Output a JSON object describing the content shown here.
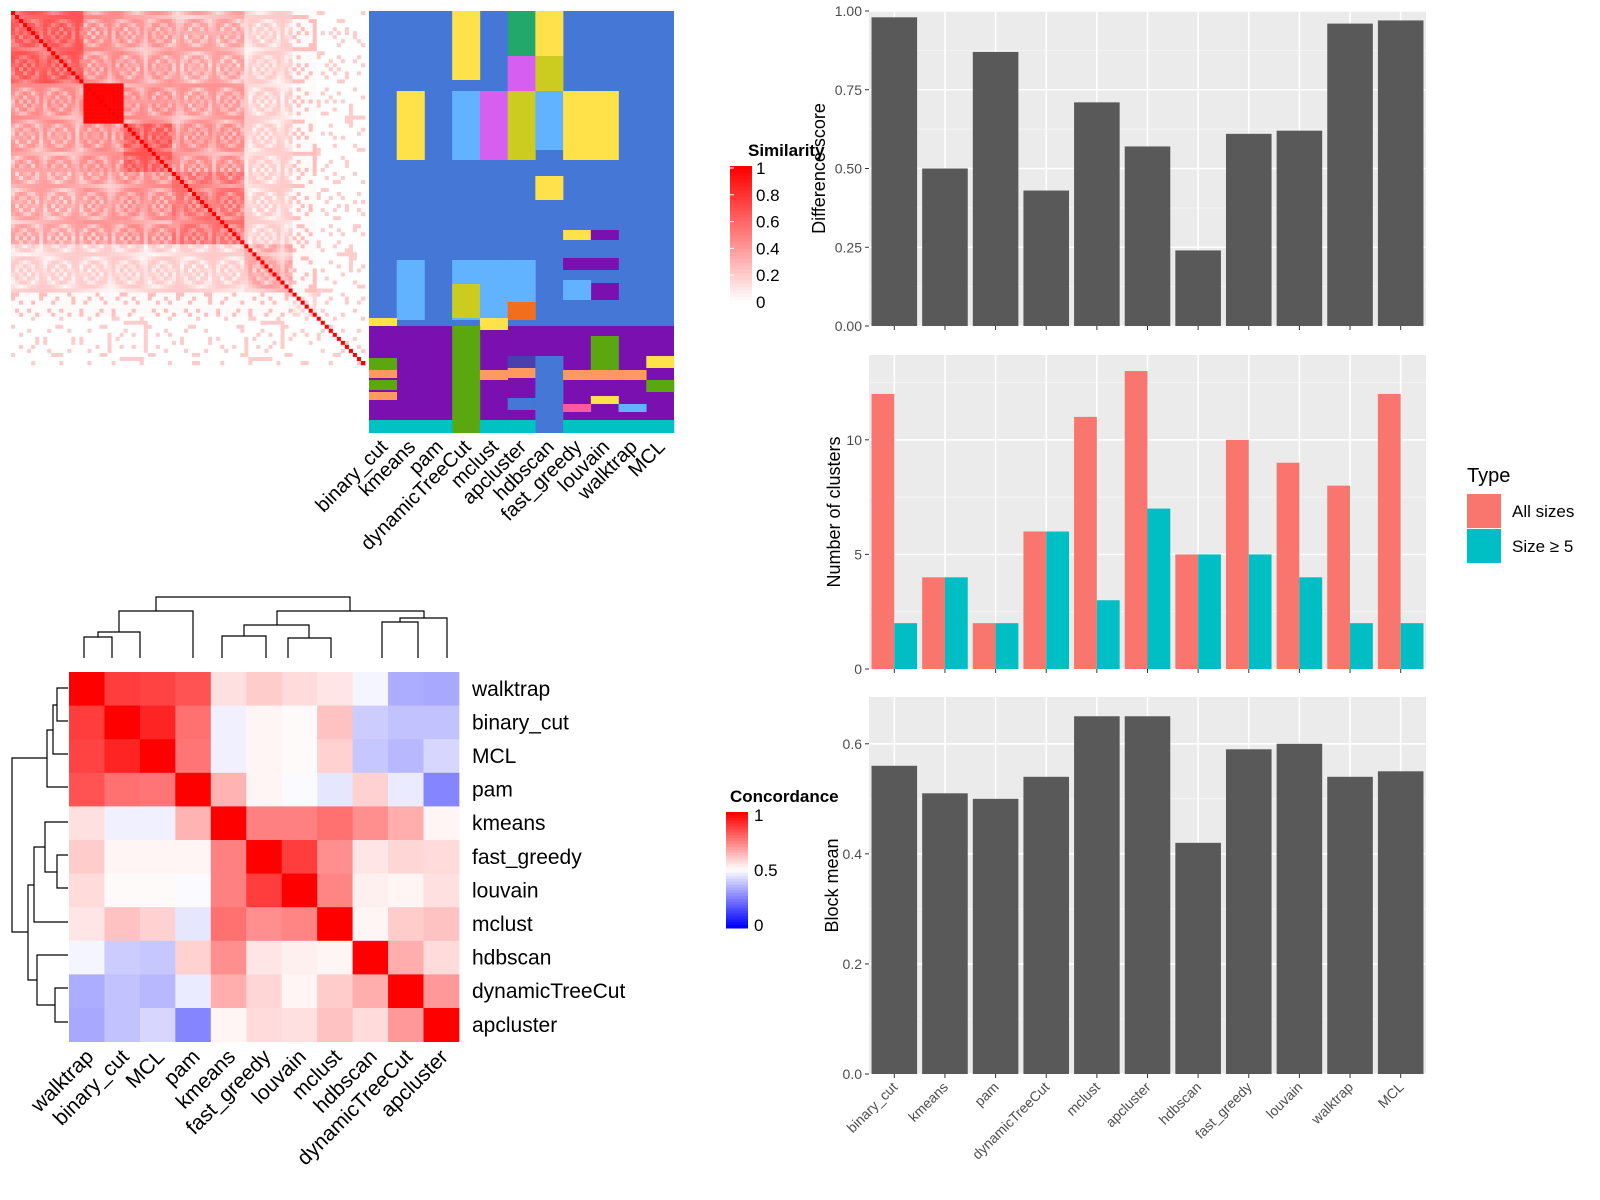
{
  "methods_top": [
    "binary_cut",
    "kmeans",
    "pam",
    "dynamicTreeCut",
    "mclust",
    "apcluster",
    "hdbscan",
    "fast_greedy",
    "louvain",
    "walktrap",
    "MCL"
  ],
  "similarity_legend": {
    "title": "Similarity",
    "ticks": [
      "1",
      "0.8",
      "0.6",
      "0.4",
      "0.2",
      "0"
    ]
  },
  "concordance_legend": {
    "title": "Concordance",
    "ticks": [
      "1",
      "0.5",
      "0"
    ]
  },
  "heat_rows": [
    "walktrap",
    "binary_cut",
    "MCL",
    "pam",
    "kmeans",
    "fast_greedy",
    "louvain",
    "mclust",
    "hdbscan",
    "dynamicTreeCut",
    "apcluster"
  ],
  "heat_cols": [
    "walktrap",
    "binary_cut",
    "MCL",
    "pam",
    "kmeans",
    "fast_greedy",
    "louvain",
    "mclust",
    "hdbscan",
    "dynamicTreeCut",
    "apcluster"
  ],
  "concordance_matrix": [
    [
      1.0,
      0.88,
      0.87,
      0.84,
      0.56,
      0.6,
      0.57,
      0.55,
      0.48,
      0.34,
      0.33
    ],
    [
      0.88,
      1.0,
      0.93,
      0.78,
      0.47,
      0.52,
      0.51,
      0.62,
      0.4,
      0.38,
      0.38
    ],
    [
      0.87,
      0.93,
      1.0,
      0.77,
      0.47,
      0.52,
      0.51,
      0.59,
      0.39,
      0.36,
      0.42
    ],
    [
      0.84,
      0.78,
      0.77,
      1.0,
      0.65,
      0.52,
      0.49,
      0.45,
      0.59,
      0.46,
      0.26
    ],
    [
      0.56,
      0.47,
      0.47,
      0.65,
      1.0,
      0.75,
      0.75,
      0.78,
      0.72,
      0.66,
      0.52
    ],
    [
      0.6,
      0.52,
      0.52,
      0.52,
      0.75,
      1.0,
      0.88,
      0.72,
      0.55,
      0.58,
      0.57
    ],
    [
      0.57,
      0.51,
      0.51,
      0.49,
      0.75,
      0.88,
      1.0,
      0.74,
      0.53,
      0.52,
      0.56
    ],
    [
      0.55,
      0.62,
      0.59,
      0.45,
      0.78,
      0.72,
      0.74,
      1.0,
      0.52,
      0.6,
      0.62
    ],
    [
      0.48,
      0.4,
      0.39,
      0.59,
      0.72,
      0.55,
      0.53,
      0.52,
      1.0,
      0.66,
      0.57
    ],
    [
      0.34,
      0.38,
      0.36,
      0.46,
      0.66,
      0.58,
      0.52,
      0.6,
      0.66,
      1.0,
      0.7
    ],
    [
      0.33,
      0.38,
      0.42,
      0.26,
      0.52,
      0.57,
      0.56,
      0.62,
      0.57,
      0.7,
      1.0
    ]
  ],
  "chart_data": [
    {
      "type": "bar",
      "ylabel": "Difference score",
      "ylim": [
        0,
        1
      ],
      "yticks": [
        "0.00",
        "0.25",
        "0.50",
        "0.75",
        "1.00"
      ],
      "categories": [
        "binary_cut",
        "kmeans",
        "pam",
        "dynamicTreeCut",
        "mclust",
        "apcluster",
        "hdbscan",
        "fast_greedy",
        "louvain",
        "walktrap",
        "MCL"
      ],
      "values": [
        0.98,
        0.5,
        0.87,
        0.43,
        0.71,
        0.57,
        0.24,
        0.61,
        0.62,
        0.96,
        0.97
      ]
    },
    {
      "type": "bar",
      "ylabel": "Number of clusters",
      "ylim": [
        0,
        13.7
      ],
      "yticks": [
        "0",
        "5",
        "10"
      ],
      "categories": [
        "binary_cut",
        "kmeans",
        "pam",
        "dynamicTreeCut",
        "mclust",
        "apcluster",
        "hdbscan",
        "fast_greedy",
        "louvain",
        "walktrap",
        "MCL"
      ],
      "legend_title": "Type",
      "series": [
        {
          "name": "All sizes",
          "color": "#F8766D",
          "values": [
            12,
            4,
            2,
            6,
            11,
            13,
            5,
            10,
            9,
            8,
            12
          ]
        },
        {
          "name": "Size ≥ 5",
          "color": "#00BFC4",
          "values": [
            2,
            4,
            2,
            6,
            3,
            7,
            5,
            5,
            4,
            2,
            2
          ]
        }
      ]
    },
    {
      "type": "bar",
      "ylabel": "Block mean",
      "ylim": [
        0,
        0.685
      ],
      "yticks": [
        "0.0",
        "0.2",
        "0.4",
        "0.6"
      ],
      "categories": [
        "binary_cut",
        "kmeans",
        "pam",
        "dynamicTreeCut",
        "mclust",
        "apcluster",
        "hdbscan",
        "fast_greedy",
        "louvain",
        "walktrap",
        "MCL"
      ],
      "values": [
        0.56,
        0.51,
        0.5,
        0.54,
        0.65,
        0.65,
        0.42,
        0.59,
        0.6,
        0.54,
        0.55
      ]
    }
  ]
}
